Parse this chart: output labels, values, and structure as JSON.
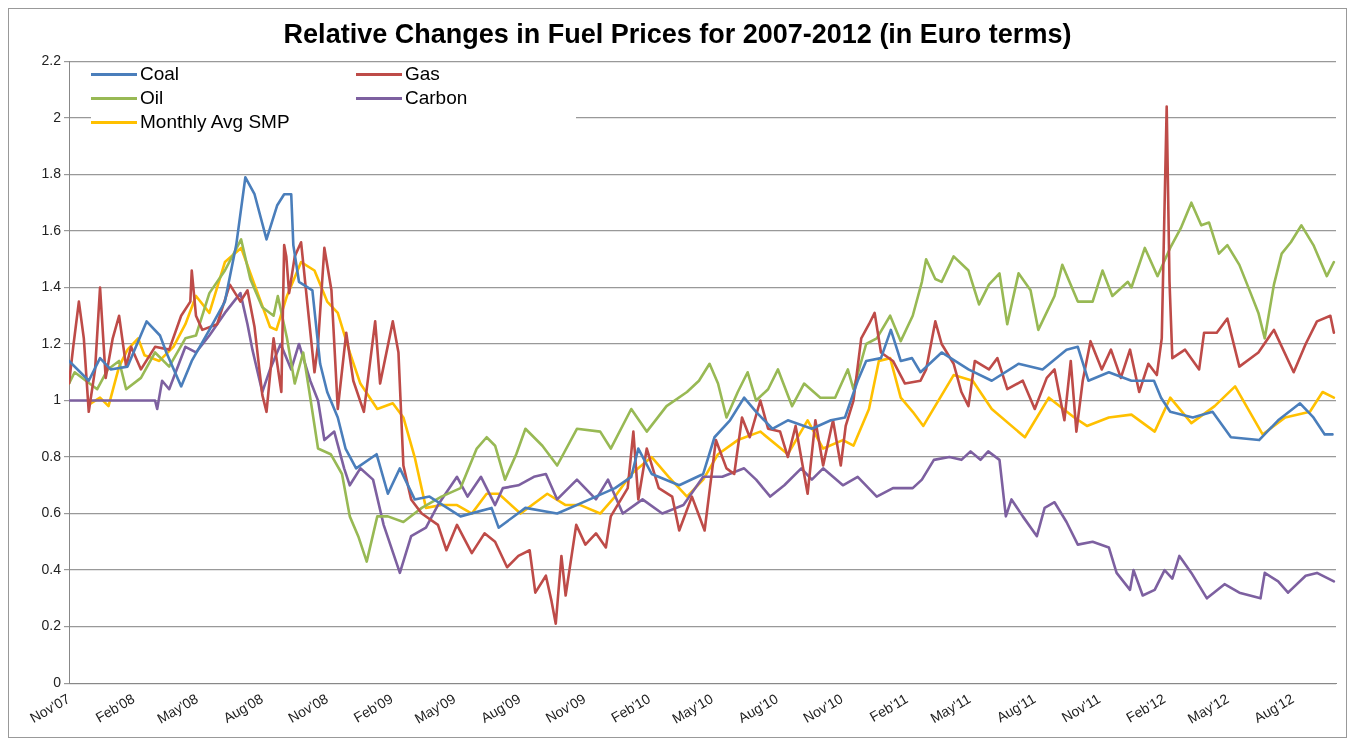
{
  "chart_data": {
    "type": "line",
    "title": "Relative Changes in Fuel Prices for 2007-2012 (in Euro terms)",
    "xlim": [
      "2007-11-01",
      "2012-10-01"
    ],
    "xticks": [
      {
        "value": "2007-11",
        "label": "Nov'07"
      },
      {
        "value": "2008-02",
        "label": "Feb'08"
      },
      {
        "value": "2008-05",
        "label": "May'08"
      },
      {
        "value": "2008-08",
        "label": "Aug'08"
      },
      {
        "value": "2008-11",
        "label": "Nov'08"
      },
      {
        "value": "2009-02",
        "label": "Feb'09"
      },
      {
        "value": "2009-05",
        "label": "May'09"
      },
      {
        "value": "2009-08",
        "label": "Aug'09"
      },
      {
        "value": "2009-11",
        "label": "Nov'09"
      },
      {
        "value": "2010-02",
        "label": "Feb'10"
      },
      {
        "value": "2010-05",
        "label": "May'10"
      },
      {
        "value": "2010-08",
        "label": "Aug'10"
      },
      {
        "value": "2010-11",
        "label": "Nov'10"
      },
      {
        "value": "2011-02",
        "label": "Feb'11"
      },
      {
        "value": "2011-05",
        "label": "May'11"
      },
      {
        "value": "2011-08",
        "label": "Aug'11"
      },
      {
        "value": "2011-11",
        "label": "Nov'11"
      },
      {
        "value": "2012-02",
        "label": "Feb'12"
      },
      {
        "value": "2012-05",
        "label": "May'12"
      },
      {
        "value": "2012-08",
        "label": "Aug'12"
      }
    ],
    "ylim": [
      0,
      2.2
    ],
    "yticks": [
      0,
      0.2,
      0.4,
      0.6,
      0.8,
      1,
      1.2,
      1.4,
      1.6,
      1.8,
      2,
      2.2
    ],
    "grid": "y",
    "legend": "top left",
    "series": [
      {
        "name": "Coal",
        "color": "#4a7ebb",
        "x": [
          "2007-11-01",
          "2007-11-29",
          "2007-12-15",
          "2007-12-30",
          "2008-01-23",
          "2008-02-19",
          "2008-03-09",
          "2008-03-18",
          "2008-04-08",
          "2008-04-23",
          "2008-05-18",
          "2008-06-09",
          "2008-06-25",
          "2008-07-08",
          "2008-07-21",
          "2008-08-07",
          "2008-08-22",
          "2008-09-01",
          "2008-09-11",
          "2008-09-14",
          "2008-09-22",
          "2008-10-11",
          "2008-10-22",
          "2008-11-01",
          "2008-11-16",
          "2008-11-27",
          "2008-12-12",
          "2009-01-10",
          "2009-01-26",
          "2009-02-12",
          "2009-03-05",
          "2009-03-26",
          "2009-05-09",
          "2009-06-22",
          "2009-07-02",
          "2009-08-09",
          "2009-09-23",
          "2009-11-08",
          "2009-12-14",
          "2010-01-06",
          "2010-01-16",
          "2010-02-04",
          "2010-03-15",
          "2010-04-18",
          "2010-05-04",
          "2010-05-26",
          "2010-06-15",
          "2010-07-02",
          "2010-07-25",
          "2010-08-16",
          "2010-09-19",
          "2010-10-16",
          "2010-11-05",
          "2010-11-23",
          "2010-12-05",
          "2010-12-26",
          "2011-01-09",
          "2011-01-23",
          "2011-02-08",
          "2011-02-20",
          "2011-03-22",
          "2011-04-29",
          "2011-06-01",
          "2011-07-09",
          "2011-08-12",
          "2011-09-15",
          "2011-10-01",
          "2011-10-16",
          "2011-11-14",
          "2011-12-16",
          "2012-01-17",
          "2012-01-27",
          "2012-02-09",
          "2012-03-12",
          "2012-04-09",
          "2012-05-05",
          "2012-06-14",
          "2012-07-11",
          "2012-08-11",
          "2012-08-30",
          "2012-09-15",
          "2012-09-26"
        ],
        "values": [
          1.14,
          1.07,
          1.15,
          1.11,
          1.12,
          1.28,
          1.23,
          1.17,
          1.05,
          1.14,
          1.25,
          1.35,
          1.55,
          1.79,
          1.73,
          1.57,
          1.69,
          1.73,
          1.73,
          1.55,
          1.42,
          1.39,
          1.13,
          1.03,
          0.94,
          0.83,
          0.76,
          0.81,
          0.67,
          0.76,
          0.65,
          0.66,
          0.59,
          0.62,
          0.55,
          0.62,
          0.6,
          0.65,
          0.69,
          0.73,
          0.83,
          0.74,
          0.7,
          0.74,
          0.87,
          0.93,
          1.01,
          0.96,
          0.9,
          0.93,
          0.9,
          0.93,
          0.94,
          1.07,
          1.14,
          1.15,
          1.25,
          1.14,
          1.15,
          1.1,
          1.17,
          1.11,
          1.07,
          1.13,
          1.11,
          1.18,
          1.19,
          1.07,
          1.1,
          1.07,
          1.07,
          1.01,
          0.96,
          0.94,
          0.96,
          0.87,
          0.86,
          0.93,
          0.99,
          0.94,
          0.88,
          0.88
        ]
      },
      {
        "name": "Gas",
        "color": "#be4b48",
        "x": [
          "2007-11-01",
          "2007-11-07",
          "2007-11-15",
          "2007-11-22",
          "2007-11-29",
          "2007-12-08",
          "2007-12-15",
          "2007-12-23",
          "2008-01-02",
          "2008-01-11",
          "2008-01-21",
          "2008-01-28",
          "2008-02-11",
          "2008-03-02",
          "2008-03-22",
          "2008-04-08",
          "2008-04-21",
          "2008-04-23",
          "2008-04-29",
          "2008-05-08",
          "2008-05-29",
          "2008-06-16",
          "2008-07-01",
          "2008-07-11",
          "2008-07-21",
          "2008-08-01",
          "2008-08-07",
          "2008-08-17",
          "2008-08-28",
          "2008-09-01",
          "2008-09-04",
          "2008-09-08",
          "2008-09-16",
          "2008-09-25",
          "2008-10-04",
          "2008-10-14",
          "2008-10-19",
          "2008-10-28",
          "2008-11-07",
          "2008-11-16",
          "2008-11-28",
          "2008-12-08",
          "2008-12-23",
          "2009-01-08",
          "2009-01-15",
          "2009-02-02",
          "2009-02-10",
          "2009-02-17",
          "2009-02-28",
          "2009-03-15",
          "2009-04-07",
          "2009-04-19",
          "2009-05-04",
          "2009-05-25",
          "2009-06-12",
          "2009-06-27",
          "2009-07-14",
          "2009-07-30",
          "2009-08-15",
          "2009-08-23",
          "2009-09-07",
          "2009-09-15",
          "2009-09-21",
          "2009-09-29",
          "2009-10-05",
          "2009-10-20",
          "2009-11-02",
          "2009-11-17",
          "2009-12-01",
          "2009-12-08",
          "2010-01-01",
          "2010-01-09",
          "2010-01-16",
          "2010-01-28",
          "2010-02-14",
          "2010-03-05",
          "2010-03-15",
          "2010-04-02",
          "2010-04-20",
          "2010-05-06",
          "2010-05-21",
          "2010-06-01",
          "2010-06-12",
          "2010-06-23",
          "2010-07-08",
          "2010-07-19",
          "2010-08-05",
          "2010-08-16",
          "2010-08-27",
          "2010-09-13",
          "2010-09-24",
          "2010-10-05",
          "2010-10-19",
          "2010-10-30",
          "2010-11-06",
          "2010-11-17",
          "2010-11-28",
          "2010-12-09",
          "2010-12-17",
          "2010-12-26",
          "2011-01-12",
          "2011-01-29",
          "2011-02-20",
          "2011-02-28",
          "2011-03-13",
          "2011-03-22",
          "2011-04-08",
          "2011-04-19",
          "2011-04-29",
          "2011-05-08",
          "2011-05-28",
          "2011-06-09",
          "2011-06-23",
          "2011-07-15",
          "2011-08-01",
          "2011-08-18",
          "2011-08-29",
          "2011-09-12",
          "2011-09-21",
          "2011-09-29",
          "2011-10-08",
          "2011-10-19",
          "2011-11-04",
          "2011-11-17",
          "2011-12-01",
          "2011-12-14",
          "2011-12-27",
          "2012-01-09",
          "2012-01-21",
          "2012-01-28",
          "2012-02-04",
          "2012-02-08",
          "2012-02-12",
          "2012-03-01",
          "2012-03-21",
          "2012-03-28",
          "2012-04-15",
          "2012-04-30",
          "2012-05-17",
          "2012-06-13",
          "2012-07-05",
          "2012-08-02",
          "2012-08-19",
          "2012-09-04",
          "2012-09-23",
          "2012-09-28"
        ],
        "values": [
          1.06,
          1.19,
          1.35,
          1.22,
          0.96,
          1.11,
          1.4,
          1.08,
          1.22,
          1.3,
          1.12,
          1.19,
          1.11,
          1.19,
          1.18,
          1.3,
          1.35,
          1.46,
          1.3,
          1.25,
          1.27,
          1.41,
          1.35,
          1.39,
          1.26,
          1.02,
          0.96,
          1.22,
          1.03,
          1.55,
          1.51,
          1.38,
          1.51,
          1.56,
          1.34,
          1.1,
          1.2,
          1.54,
          1.39,
          0.97,
          1.24,
          1.07,
          0.96,
          1.28,
          1.06,
          1.28,
          1.17,
          0.77,
          0.65,
          0.6,
          0.56,
          0.47,
          0.56,
          0.46,
          0.53,
          0.5,
          0.41,
          0.45,
          0.47,
          0.32,
          0.38,
          0.29,
          0.21,
          0.45,
          0.31,
          0.56,
          0.49,
          0.53,
          0.48,
          0.59,
          0.69,
          0.89,
          0.65,
          0.83,
          0.69,
          0.66,
          0.54,
          0.66,
          0.54,
          0.86,
          0.76,
          0.74,
          0.94,
          0.87,
          1.0,
          0.9,
          0.89,
          0.8,
          0.91,
          0.67,
          0.93,
          0.77,
          0.93,
          0.77,
          0.91,
          1.0,
          1.22,
          1.27,
          1.31,
          1.17,
          1.14,
          1.06,
          1.07,
          1.11,
          1.28,
          1.2,
          1.13,
          1.03,
          0.98,
          1.14,
          1.11,
          1.15,
          1.04,
          1.07,
          0.97,
          1.08,
          1.11,
          0.93,
          1.14,
          0.89,
          1.07,
          1.21,
          1.11,
          1.18,
          1.08,
          1.18,
          1.03,
          1.13,
          1.09,
          1.22,
          2.04,
          1.42,
          1.15,
          1.18,
          1.11,
          1.24,
          1.24,
          1.29,
          1.12,
          1.17,
          1.25,
          1.1,
          1.2,
          1.28,
          1.3,
          1.24
        ]
      },
      {
        "name": "Oil",
        "color": "#98b954",
        "x": [
          "2007-11-01",
          "2007-11-09",
          "2007-11-25",
          "2007-12-11",
          "2007-12-26",
          "2008-01-11",
          "2008-01-21",
          "2008-02-11",
          "2008-03-02",
          "2008-03-22",
          "2008-04-14",
          "2008-04-29",
          "2008-05-18",
          "2008-06-09",
          "2008-07-02",
          "2008-07-15",
          "2008-08-01",
          "2008-08-17",
          "2008-08-23",
          "2008-09-05",
          "2008-09-16",
          "2008-09-28",
          "2008-10-08",
          "2008-10-19",
          "2008-11-06",
          "2008-11-22",
          "2008-12-03",
          "2008-12-15",
          "2008-12-27",
          "2009-01-11",
          "2009-01-26",
          "2009-02-17",
          "2009-03-15",
          "2009-04-12",
          "2009-05-09",
          "2009-06-01",
          "2009-06-15",
          "2009-06-27",
          "2009-07-11",
          "2009-07-27",
          "2009-08-09",
          "2009-09-02",
          "2009-09-23",
          "2009-10-21",
          "2009-11-23",
          "2009-12-08",
          "2010-01-06",
          "2010-01-28",
          "2010-02-25",
          "2010-03-26",
          "2010-04-12",
          "2010-04-27",
          "2010-05-09",
          "2010-05-21",
          "2010-06-06",
          "2010-06-20",
          "2010-07-02",
          "2010-07-19",
          "2010-08-02",
          "2010-08-22",
          "2010-09-08",
          "2010-10-01",
          "2010-10-22",
          "2010-11-09",
          "2010-11-17",
          "2010-12-05",
          "2010-12-20",
          "2011-01-08",
          "2011-01-23",
          "2011-02-09",
          "2011-02-22",
          "2011-02-28",
          "2011-03-13",
          "2011-03-22",
          "2011-04-08",
          "2011-04-29",
          "2011-05-14",
          "2011-05-28",
          "2011-06-12",
          "2011-06-23",
          "2011-07-09",
          "2011-07-26",
          "2011-08-06",
          "2011-08-29",
          "2011-09-09",
          "2011-10-01",
          "2011-10-22",
          "2011-11-05",
          "2011-11-19",
          "2011-12-11",
          "2011-12-16",
          "2012-01-04",
          "2012-01-22",
          "2012-02-09",
          "2012-02-24",
          "2012-03-10",
          "2012-03-24",
          "2012-04-04",
          "2012-04-18",
          "2012-04-30",
          "2012-05-17",
          "2012-06-02",
          "2012-06-13",
          "2012-06-22",
          "2012-07-05",
          "2012-07-16",
          "2012-07-29",
          "2012-08-13",
          "2012-08-30",
          "2012-09-18",
          "2012-09-28"
        ],
        "values": [
          1.06,
          1.1,
          1.07,
          1.04,
          1.11,
          1.14,
          1.04,
          1.08,
          1.17,
          1.12,
          1.22,
          1.23,
          1.38,
          1.46,
          1.57,
          1.43,
          1.33,
          1.3,
          1.37,
          1.22,
          1.06,
          1.17,
          1.01,
          0.83,
          0.81,
          0.74,
          0.59,
          0.52,
          0.43,
          0.59,
          0.59,
          0.57,
          0.62,
          0.66,
          0.69,
          0.83,
          0.87,
          0.84,
          0.72,
          0.81,
          0.9,
          0.84,
          0.77,
          0.9,
          0.89,
          0.83,
          0.97,
          0.89,
          0.98,
          1.03,
          1.07,
          1.13,
          1.06,
          0.94,
          1.03,
          1.1,
          1.0,
          1.04,
          1.11,
          0.98,
          1.06,
          1.01,
          1.01,
          1.11,
          1.04,
          1.2,
          1.22,
          1.3,
          1.21,
          1.3,
          1.42,
          1.5,
          1.43,
          1.42,
          1.51,
          1.46,
          1.34,
          1.41,
          1.45,
          1.27,
          1.45,
          1.39,
          1.25,
          1.37,
          1.48,
          1.35,
          1.35,
          1.46,
          1.37,
          1.42,
          1.4,
          1.54,
          1.44,
          1.54,
          1.61,
          1.7,
          1.62,
          1.63,
          1.52,
          1.55,
          1.48,
          1.38,
          1.31,
          1.22,
          1.41,
          1.52,
          1.56,
          1.62,
          1.55,
          1.44,
          1.49
        ]
      },
      {
        "name": "Carbon",
        "color": "#7d60a0",
        "x": [
          "2007-11-01",
          "2008-03-02",
          "2008-03-05",
          "2008-03-12",
          "2008-03-22",
          "2008-04-14",
          "2008-04-29",
          "2008-05-18",
          "2008-06-09",
          "2008-07-01",
          "2008-07-11",
          "2008-07-18",
          "2008-08-01",
          "2008-08-12",
          "2008-08-27",
          "2008-09-11",
          "2008-09-22",
          "2008-10-08",
          "2008-10-19",
          "2008-10-28",
          "2008-11-11",
          "2008-11-25",
          "2008-12-03",
          "2008-12-18",
          "2009-01-05",
          "2009-01-20",
          "2009-02-12",
          "2009-02-28",
          "2009-03-21",
          "2009-04-07",
          "2009-05-04",
          "2009-05-19",
          "2009-06-07",
          "2009-06-27",
          "2009-07-08",
          "2009-07-30",
          "2009-08-21",
          "2009-09-07",
          "2009-09-23",
          "2009-10-21",
          "2009-11-17",
          "2009-12-04",
          "2009-12-25",
          "2010-01-22",
          "2010-02-19",
          "2010-03-21",
          "2010-04-18",
          "2010-05-15",
          "2010-06-15",
          "2010-07-02",
          "2010-07-22",
          "2010-08-11",
          "2010-09-04",
          "2010-09-19",
          "2010-10-05",
          "2010-11-02",
          "2010-11-23",
          "2010-12-20",
          "2011-01-12",
          "2011-02-09",
          "2011-02-22",
          "2011-03-11",
          "2011-04-02",
          "2011-04-19",
          "2011-05-02",
          "2011-05-16",
          "2011-05-27",
          "2011-06-12",
          "2011-06-21",
          "2011-06-29",
          "2011-07-15",
          "2011-08-04",
          "2011-08-15",
          "2011-08-29",
          "2011-09-15",
          "2011-10-01",
          "2011-10-22",
          "2011-11-14",
          "2011-11-25",
          "2011-12-14",
          "2011-12-19",
          "2012-01-01",
          "2012-01-18",
          "2012-02-01",
          "2012-02-12",
          "2012-02-22",
          "2012-03-10",
          "2012-04-01",
          "2012-04-26",
          "2012-05-17",
          "2012-06-16",
          "2012-06-22",
          "2012-07-11",
          "2012-07-25",
          "2012-08-19",
          "2012-09-04",
          "2012-09-28"
        ],
        "values": [
          1.0,
          1.0,
          0.97,
          1.07,
          1.04,
          1.19,
          1.17,
          1.23,
          1.31,
          1.38,
          1.27,
          1.18,
          1.03,
          1.11,
          1.2,
          1.11,
          1.2,
          1.07,
          1.0,
          0.86,
          0.89,
          0.76,
          0.7,
          0.76,
          0.72,
          0.56,
          0.39,
          0.52,
          0.55,
          0.63,
          0.73,
          0.66,
          0.73,
          0.63,
          0.69,
          0.7,
          0.73,
          0.74,
          0.65,
          0.72,
          0.65,
          0.72,
          0.6,
          0.65,
          0.6,
          0.63,
          0.73,
          0.73,
          0.76,
          0.72,
          0.66,
          0.7,
          0.76,
          0.72,
          0.76,
          0.7,
          0.73,
          0.66,
          0.69,
          0.69,
          0.72,
          0.79,
          0.8,
          0.79,
          0.82,
          0.79,
          0.82,
          0.79,
          0.59,
          0.65,
          0.59,
          0.52,
          0.62,
          0.64,
          0.57,
          0.49,
          0.5,
          0.48,
          0.39,
          0.33,
          0.4,
          0.31,
          0.33,
          0.4,
          0.37,
          0.45,
          0.39,
          0.3,
          0.35,
          0.32,
          0.3,
          0.39,
          0.36,
          0.32,
          0.38,
          0.39,
          0.36
        ]
      },
      {
        "name": "Monthly Avg SMP",
        "color": "#ffc000",
        "x": [
          "2007-12-02",
          "2007-12-15",
          "2007-12-27",
          "2008-01-11",
          "2008-01-23",
          "2008-02-07",
          "2008-02-16",
          "2008-03-08",
          "2008-03-28",
          "2008-04-14",
          "2008-04-29",
          "2008-05-18",
          "2008-06-09",
          "2008-07-02",
          "2008-07-21",
          "2008-08-12",
          "2008-08-21",
          "2008-09-05",
          "2008-09-25",
          "2008-10-14",
          "2008-11-01",
          "2008-11-16",
          "2008-12-03",
          "2008-12-18",
          "2009-01-11",
          "2009-02-02",
          "2009-02-17",
          "2009-03-05",
          "2009-03-21",
          "2009-04-12",
          "2009-05-04",
          "2009-05-25",
          "2009-06-15",
          "2009-07-02",
          "2009-08-02",
          "2009-09-09",
          "2009-10-05",
          "2009-10-26",
          "2009-11-23",
          "2009-12-14",
          "2010-01-06",
          "2010-02-04",
          "2010-02-28",
          "2010-03-26",
          "2010-04-18",
          "2010-05-09",
          "2010-06-06",
          "2010-07-08",
          "2010-08-16",
          "2010-09-13",
          "2010-10-05",
          "2010-11-02",
          "2010-11-17",
          "2010-12-09",
          "2010-12-23",
          "2011-01-08",
          "2011-01-23",
          "2011-02-09",
          "2011-02-24",
          "2011-04-08",
          "2011-05-05",
          "2011-06-01",
          "2011-07-18",
          "2011-08-21",
          "2011-09-26",
          "2011-10-14",
          "2011-11-14",
          "2011-12-16",
          "2012-01-18",
          "2012-02-09",
          "2012-03-10",
          "2012-04-12",
          "2012-05-11",
          "2012-05-27",
          "2012-06-19",
          "2012-07-21",
          "2012-08-25",
          "2012-09-12",
          "2012-09-28"
        ],
        "values": [
          0.99,
          1.01,
          0.98,
          1.12,
          1.18,
          1.22,
          1.16,
          1.14,
          1.19,
          1.27,
          1.37,
          1.31,
          1.49,
          1.54,
          1.41,
          1.26,
          1.25,
          1.37,
          1.49,
          1.46,
          1.35,
          1.31,
          1.17,
          1.06,
          0.97,
          0.99,
          0.94,
          0.8,
          0.62,
          0.63,
          0.63,
          0.6,
          0.67,
          0.67,
          0.6,
          0.67,
          0.63,
          0.63,
          0.6,
          0.66,
          0.74,
          0.8,
          0.73,
          0.66,
          0.72,
          0.81,
          0.86,
          0.89,
          0.81,
          0.93,
          0.83,
          0.86,
          0.84,
          0.97,
          1.14,
          1.15,
          1.01,
          0.96,
          0.91,
          1.09,
          1.07,
          0.97,
          0.87,
          1.01,
          0.94,
          0.91,
          0.94,
          0.95,
          0.89,
          1.01,
          0.92,
          0.98,
          1.05,
          0.98,
          0.88,
          0.94,
          0.96,
          1.03,
          1.01
        ]
      }
    ]
  }
}
